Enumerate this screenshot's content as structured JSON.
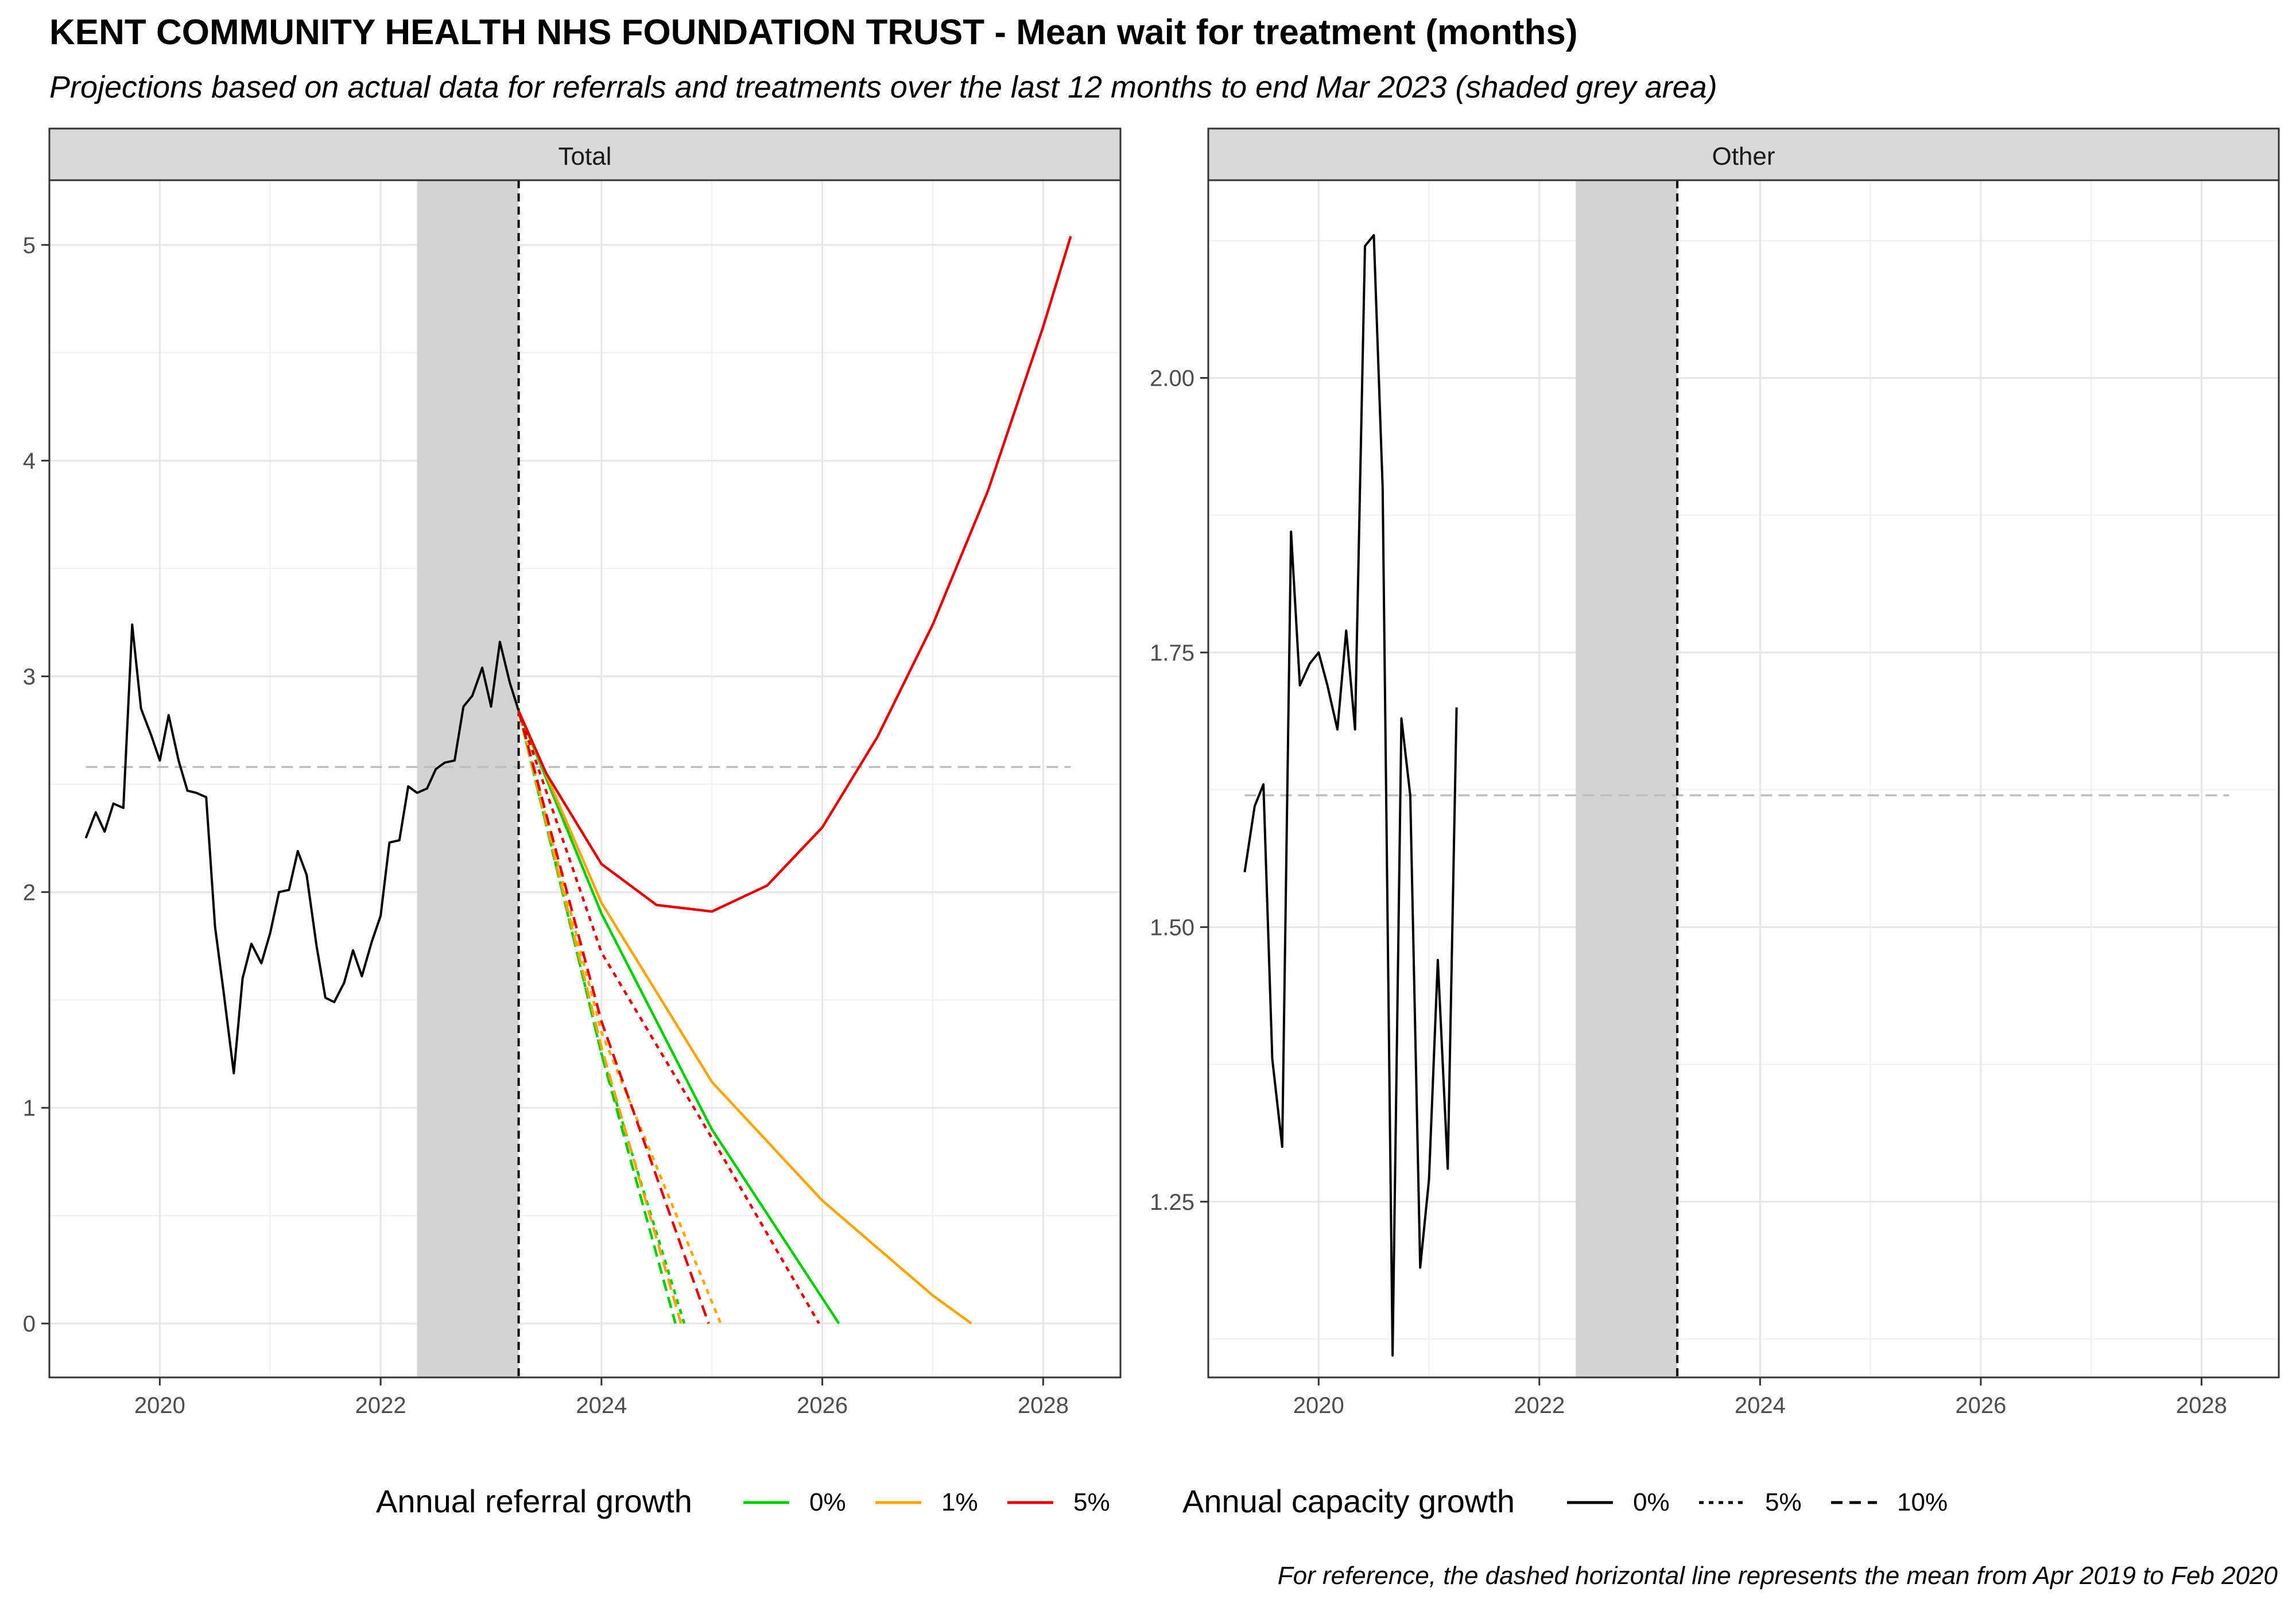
{
  "title": "KENT COMMUNITY HEALTH NHS FOUNDATION TRUST - Mean wait for treatment (months)",
  "subtitle": "Projections based on actual data for referrals and treatments over the last 12 months to end Mar 2023 (shaded grey area)",
  "caption": "For reference, the dashed horizontal line represents the mean from Apr 2019 to Feb 2020",
  "colors": {
    "growth_0": "#00cc00",
    "growth_1": "#ffa500",
    "growth_5": "#e00000",
    "actual": "#000000",
    "shade": "#d3d3d3",
    "reference": "#bebebe",
    "strip": "#d9d9d9"
  },
  "legend": {
    "referral": {
      "title": "Annual referral growth",
      "items": [
        "0%",
        "1%",
        "5%"
      ]
    },
    "capacity": {
      "title": "Annual capacity growth",
      "items": [
        "0%",
        "5%",
        "10%"
      ]
    }
  },
  "chart_data": [
    {
      "type": "line",
      "panel": "Total",
      "xlim": [
        2019.0,
        2028.7
      ],
      "ylim": [
        -0.25,
        5.3
      ],
      "x_ticks": [
        2020,
        2022,
        2024,
        2026,
        2028
      ],
      "y_ticks": [
        0,
        1,
        2,
        3,
        4,
        5
      ],
      "shaded_region": [
        2022.33,
        2023.25
      ],
      "vline": 2023.25,
      "reference_line": {
        "y": 2.58,
        "x": [
          2019.33,
          2028.25
        ]
      },
      "actual": {
        "x": [
          2019.33,
          2019.42,
          2019.5,
          2019.58,
          2019.67,
          2019.75,
          2019.83,
          2019.92,
          2020.0,
          2020.08,
          2020.17,
          2020.25,
          2020.33,
          2020.42,
          2020.5,
          2020.58,
          2020.67,
          2020.75,
          2020.83,
          2020.92,
          2021.0,
          2021.08,
          2021.17,
          2021.25,
          2021.33,
          2021.42,
          2021.5,
          2021.58,
          2021.67,
          2021.75,
          2021.83,
          2021.92,
          2022.0,
          2022.08,
          2022.17,
          2022.25,
          2022.33,
          2022.42,
          2022.5,
          2022.58,
          2022.67,
          2022.75,
          2022.83,
          2022.92,
          2023.0,
          2023.08,
          2023.17,
          2023.25
        ],
        "y": [
          2.25,
          2.37,
          2.28,
          2.41,
          2.39,
          3.24,
          2.85,
          2.73,
          2.61,
          2.82,
          2.61,
          2.47,
          2.46,
          2.44,
          1.84,
          1.53,
          1.16,
          1.6,
          1.76,
          1.67,
          1.81,
          2.0,
          2.01,
          2.19,
          2.08,
          1.75,
          1.51,
          1.49,
          1.58,
          1.73,
          1.61,
          1.77,
          1.89,
          2.23,
          2.24,
          2.49,
          2.46,
          2.48,
          2.57,
          2.6,
          2.61,
          2.86,
          2.91,
          3.04,
          2.86,
          3.16,
          2.97,
          2.84
        ]
      },
      "projections": [
        {
          "referral": "0%",
          "capacity": "0%",
          "x": [
            2023.25,
            2024.0,
            2025.0,
            2026.15
          ],
          "y": [
            2.84,
            1.9,
            0.9,
            0.0
          ]
        },
        {
          "referral": "1%",
          "capacity": "0%",
          "x": [
            2023.25,
            2024.0,
            2025.0,
            2026.0,
            2027.0,
            2027.35
          ],
          "y": [
            2.84,
            1.95,
            1.12,
            0.57,
            0.13,
            0.0
          ]
        },
        {
          "referral": "5%",
          "capacity": "0%",
          "x": [
            2023.25,
            2023.5,
            2024.0,
            2024.5,
            2025.0,
            2025.5,
            2026.0,
            2026.5,
            2027.0,
            2027.5,
            2028.0,
            2028.25
          ],
          "y": [
            2.84,
            2.55,
            2.13,
            1.94,
            1.91,
            2.03,
            2.3,
            2.72,
            3.24,
            3.86,
            4.62,
            5.04
          ]
        },
        {
          "referral": "0%",
          "capacity": "5%",
          "x": [
            2023.25,
            2024.0,
            2024.75
          ],
          "y": [
            2.84,
            1.25,
            0.0
          ]
        },
        {
          "referral": "1%",
          "capacity": "5%",
          "x": [
            2023.25,
            2024.0,
            2025.08
          ],
          "y": [
            2.84,
            1.35,
            0.0
          ]
        },
        {
          "referral": "5%",
          "capacity": "5%",
          "x": [
            2023.25,
            2024.0,
            2025.0,
            2025.97
          ],
          "y": [
            2.84,
            1.72,
            0.86,
            0.0
          ]
        },
        {
          "referral": "0%",
          "capacity": "10%",
          "x": [
            2023.25,
            2024.0,
            2024.67
          ],
          "y": [
            2.84,
            1.25,
            0.0
          ]
        },
        {
          "referral": "1%",
          "capacity": "10%",
          "x": [
            2023.25,
            2024.0,
            2024.72
          ],
          "y": [
            2.84,
            1.28,
            0.0
          ]
        },
        {
          "referral": "5%",
          "capacity": "10%",
          "x": [
            2023.25,
            2024.0,
            2024.97
          ],
          "y": [
            2.84,
            1.4,
            0.0
          ]
        }
      ]
    },
    {
      "type": "line",
      "panel": "Other",
      "xlim": [
        2019.0,
        2028.7
      ],
      "ylim": [
        1.09,
        2.18
      ],
      "x_ticks": [
        2020,
        2022,
        2024,
        2026,
        2028
      ],
      "y_ticks": [
        1.25,
        1.5,
        1.75,
        2.0
      ],
      "y_tick_labels": [
        "1.25",
        "1.50",
        "1.75",
        "2.00"
      ],
      "shaded_region": [
        2022.33,
        2023.25
      ],
      "vline": 2023.25,
      "reference_line": {
        "y": 1.62,
        "x": [
          2019.33,
          2028.25
        ]
      },
      "actual": {
        "x": [
          2019.33,
          2019.42,
          2019.5,
          2019.58,
          2019.67,
          2019.75,
          2019.83,
          2019.92,
          2020.0,
          2020.08,
          2020.17,
          2020.25,
          2020.33,
          2020.42,
          2020.5,
          2020.58,
          2020.67,
          2020.75,
          2020.83,
          2020.92,
          2021.0,
          2021.08,
          2021.17,
          2021.25
        ],
        "y": [
          1.55,
          1.61,
          1.63,
          1.38,
          1.3,
          1.86,
          1.72,
          1.74,
          1.75,
          1.72,
          1.68,
          1.77,
          1.68,
          2.12,
          2.13,
          1.9,
          1.11,
          1.69,
          1.62,
          1.19,
          1.27,
          1.47,
          1.28,
          1.7
        ]
      },
      "projections": []
    }
  ]
}
